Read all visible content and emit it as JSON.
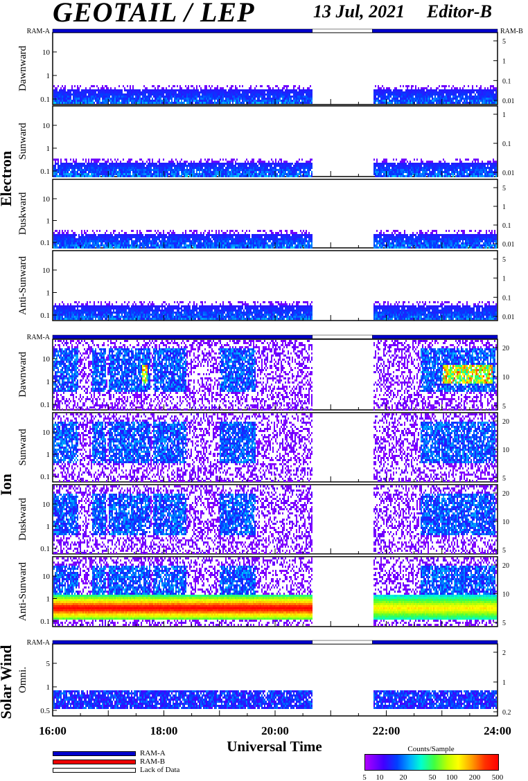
{
  "header": {
    "title": "GEOTAIL / LEP",
    "date": "13 Jul, 2021",
    "editor": "Editor-B"
  },
  "x_axis": {
    "label": "Universal Time",
    "ticks": [
      "16:00",
      "18:00",
      "20:00",
      "22:00",
      "24:00"
    ]
  },
  "groups": [
    {
      "label": "Electron",
      "ram_left": "RAM-A",
      "ram_right": "RAM-B"
    },
    {
      "label": "Ion",
      "ram_left": "RAM-A"
    },
    {
      "label": "Solar Wind",
      "ram_left": "RAM-A"
    }
  ],
  "legend": {
    "items": [
      {
        "label": "RAM-A",
        "color": "#0000cc"
      },
      {
        "label": "RAM-B",
        "color": "#ee0000"
      },
      {
        "label": "Lack of Data",
        "color": "#ffffff"
      }
    ]
  },
  "colorbar": {
    "title": "Counts/Sample",
    "ticks": [
      "5",
      "10",
      "20",
      "50",
      "100",
      "200",
      "500"
    ]
  },
  "chart_data": {
    "type": "heatmap",
    "xlabel": "Universal Time",
    "x_range_hours": [
      16,
      24
    ],
    "data_gap_hours": [
      20.67,
      21.75
    ],
    "color_scale_counts": [
      5,
      500
    ],
    "panels": [
      {
        "group": "Electron",
        "name": "Dawnward",
        "left_ticks": [
          "10",
          "1",
          "0.1"
        ],
        "right_ticks": [
          "5",
          "1",
          "0.1",
          "0.01"
        ],
        "kind": "electron"
      },
      {
        "group": "Electron",
        "name": "Sunward",
        "left_ticks": [
          "10",
          "1",
          "0.1"
        ],
        "right_ticks": [
          "1",
          "0.1",
          "0.01"
        ],
        "kind": "electron"
      },
      {
        "group": "Electron",
        "name": "Duskward",
        "left_ticks": [
          "10",
          "1",
          "0.1"
        ],
        "right_ticks": [
          "5",
          "1",
          "0.1",
          "0.01"
        ],
        "kind": "electron"
      },
      {
        "group": "Electron",
        "name": "Anti-Sunward",
        "left_ticks": [
          "10",
          "1",
          "0.1"
        ],
        "right_ticks": [
          "5",
          "1",
          "0.1",
          "0.01"
        ],
        "kind": "electron"
      },
      {
        "group": "Ion",
        "name": "Dawnward",
        "left_ticks": [
          "10",
          "1",
          "0.1"
        ],
        "right_ticks": [
          "20",
          "10",
          "5"
        ],
        "kind": "ion"
      },
      {
        "group": "Ion",
        "name": "Sunward",
        "left_ticks": [
          "10",
          "1",
          "0.1"
        ],
        "right_ticks": [
          "20",
          "10",
          "5"
        ],
        "kind": "ion"
      },
      {
        "group": "Ion",
        "name": "Duskward",
        "left_ticks": [
          "10",
          "1",
          "0.1"
        ],
        "right_ticks": [
          "20",
          "10",
          "5"
        ],
        "kind": "ion"
      },
      {
        "group": "Ion",
        "name": "Anti-Sunward",
        "left_ticks": [
          "10",
          "1",
          "0.1"
        ],
        "right_ticks": [
          "20",
          "10",
          "5"
        ],
        "kind": "ion_anti"
      },
      {
        "group": "Solar Wind",
        "name": "Omni.",
        "left_ticks": [
          "5",
          "1",
          "0.5"
        ],
        "right_ticks": [
          "2",
          "1",
          "0.2"
        ],
        "kind": "solarwind"
      }
    ]
  }
}
